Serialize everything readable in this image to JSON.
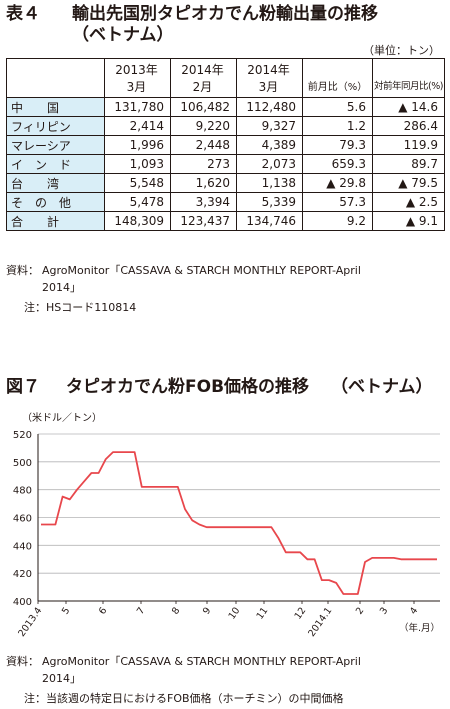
{
  "table_section": {
    "title_num": "表４",
    "title_line1": "輸出先国別タピオカでん粉輸出量の推移",
    "title_line2": "（ベトナム）",
    "unit": "（単位：トン）",
    "headers": {
      "col1_top": "2013年",
      "col1_bot": "3月",
      "col2_top": "2014年",
      "col2_bot": "2月",
      "col3_top": "2014年",
      "col3_bot": "3月",
      "col4": "前月比（%）",
      "col5": "対前年同月比(%)"
    },
    "rows": [
      {
        "name": "中　　国",
        "c1": "131,780",
        "c2": "106,482",
        "c3": "112,480",
        "c4": "5.6",
        "c5": "▲ 14.6"
      },
      {
        "name": "フィリピン",
        "c1": "2,414",
        "c2": "9,220",
        "c3": "9,327",
        "c4": "1.2",
        "c5": "286.4"
      },
      {
        "name": "マレーシア",
        "c1": "1,996",
        "c2": "2,448",
        "c3": "4,389",
        "c4": "79.3",
        "c5": "119.9"
      },
      {
        "name": "イ　ン　ド",
        "c1": "1,093",
        "c2": "273",
        "c3": "2,073",
        "c4": "659.3",
        "c5": "89.7"
      },
      {
        "name": "台　　湾",
        "c1": "5,548",
        "c2": "1,620",
        "c3": "1,138",
        "c4": "▲ 29.8",
        "c5": "▲ 79.5"
      },
      {
        "name": "そ　の　他",
        "c1": "5,478",
        "c2": "3,394",
        "c3": "5,339",
        "c4": "57.3",
        "c5": "▲ 2.5"
      },
      {
        "name": "合　　計",
        "c1": "148,309",
        "c2": "123,437",
        "c3": "134,746",
        "c4": "9.2",
        "c5": "▲ 9.1"
      }
    ],
    "source_label": "資料：",
    "source_text_1": "AgroMonitor「CASSAVA & STARCH  MONTHLY REPORT-April",
    "source_text_2": "2014」",
    "note_label": "注：",
    "note_text": "HSコード110814"
  },
  "chart_section": {
    "title_num": "図７",
    "title": "タピオカでん粉FOB価格の推移",
    "title_suffix": "（ベトナム）",
    "y_unit": "（米ドル／トン）",
    "source_label": "資料：",
    "source_text_1": "AgroMonitor「CASSAVA & STARCH MONTHLY REPORT-April",
    "source_text_2": "2014」",
    "note_label": "注：",
    "note_text": "当該週の特定日におけるFOB価格（ホーチミン）の中間価格"
  },
  "chart_data": {
    "type": "line",
    "title": "タピオカでん粉FOB価格の推移",
    "xlabel": "（年.月）",
    "ylabel": "（米ドル／トン）",
    "ylim": [
      400,
      520
    ],
    "yticks": [
      400,
      420,
      440,
      460,
      480,
      500,
      520
    ],
    "grid": true,
    "line_color": "#e8474c",
    "x_tick_labels": [
      "2013.4",
      "5",
      "6",
      "7",
      "8",
      "9",
      "10",
      "11",
      "12",
      "2014.1",
      "2",
      "3",
      "4"
    ],
    "series": [
      {
        "values": [
          455,
          455,
          455,
          475,
          473,
          480,
          486,
          492,
          492,
          502,
          507,
          507,
          507,
          507,
          482,
          482,
          482,
          482,
          482,
          482,
          466,
          458,
          455,
          453,
          453,
          453,
          453,
          453,
          453,
          453,
          453,
          453,
          453,
          445,
          435,
          435,
          435,
          430,
          430,
          415,
          415,
          413,
          405,
          405,
          405,
          428,
          431,
          431,
          431,
          431,
          430,
          430,
          430,
          430,
          430,
          430
        ]
      }
    ]
  }
}
